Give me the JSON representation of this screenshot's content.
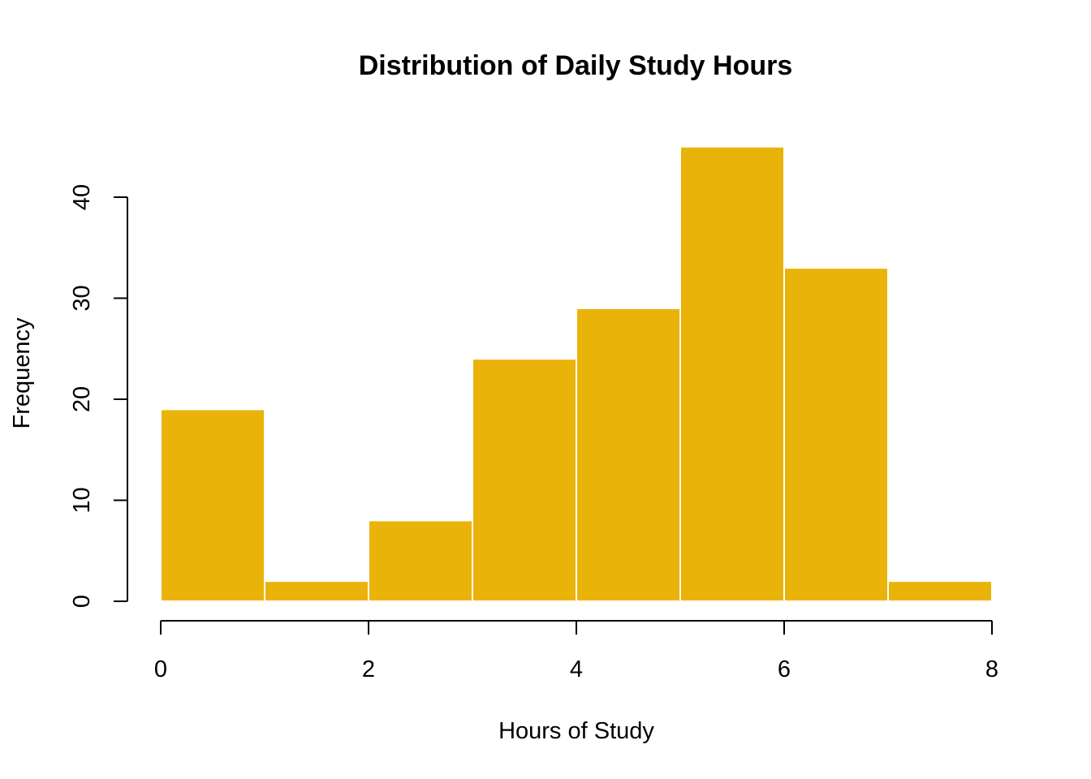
{
  "chart_data": {
    "type": "bar",
    "title": "Distribution of Daily Study Hours",
    "xlabel": "Hours of Study",
    "ylabel": "Frequency",
    "bins": [
      {
        "x0": 0,
        "x1": 1,
        "count": 19
      },
      {
        "x0": 1,
        "x1": 2,
        "count": 2
      },
      {
        "x0": 2,
        "x1": 3,
        "count": 8
      },
      {
        "x0": 3,
        "x1": 4,
        "count": 24
      },
      {
        "x0": 4,
        "x1": 5,
        "count": 29
      },
      {
        "x0": 5,
        "x1": 6,
        "count": 45
      },
      {
        "x0": 6,
        "x1": 7,
        "count": 33
      },
      {
        "x0": 7,
        "x1": 8,
        "count": 2
      }
    ],
    "xlim": [
      0,
      8
    ],
    "ylim": [
      0,
      45
    ],
    "xticks": [
      "0",
      "2",
      "4",
      "6",
      "8"
    ],
    "yticks": [
      "0",
      "10",
      "20",
      "30",
      "40"
    ],
    "grid": false,
    "bar_color": "#EAB30A",
    "bar_border_color": "#ffffff"
  }
}
